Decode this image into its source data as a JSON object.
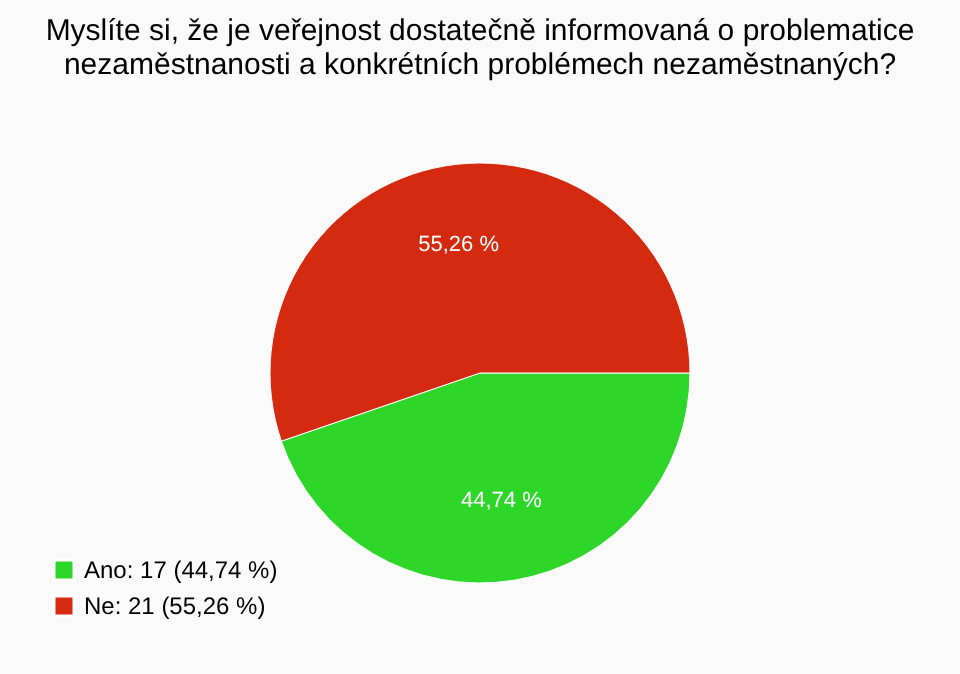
{
  "chart_data": {
    "type": "pie",
    "title": [
      "Myslíte si, že je veřejnost dostatečně informovaná o problematice",
      "nezaměstnanosti a konkrétních problémech nezaměstnaných?"
    ],
    "categories": [
      "Ano: 17 (44,74 %)",
      "Ne: 21 (55,26 %)"
    ],
    "values": [
      44.74,
      55.26
    ],
    "value_labels": [
      "44,74 %",
      "55,26 %"
    ],
    "colors": [
      "#2ed62a",
      "#d42a10"
    ],
    "legend": "bottom left"
  }
}
